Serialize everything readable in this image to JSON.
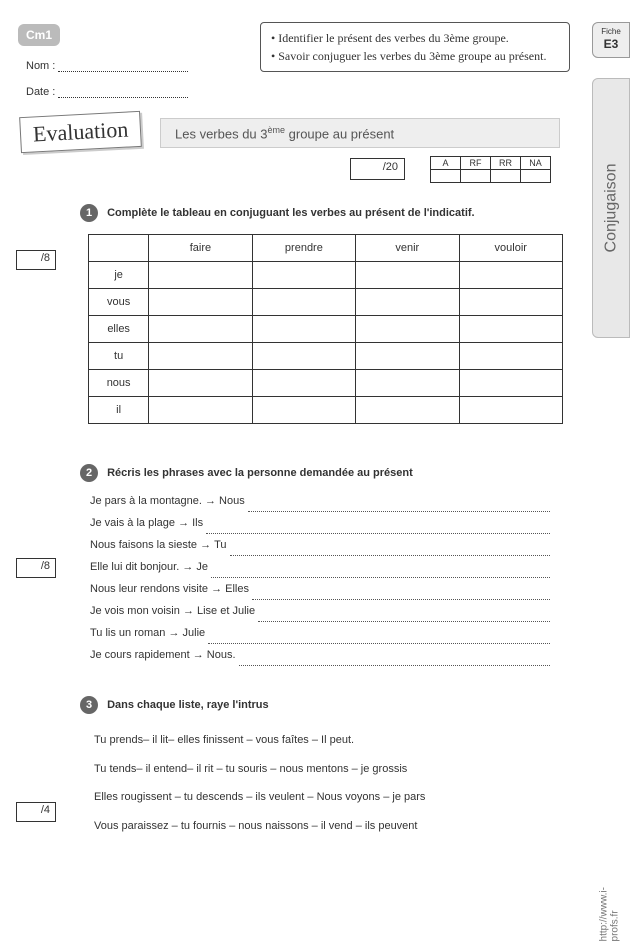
{
  "level": "Cm1",
  "sideTab": {
    "label": "Fiche",
    "code": "E3"
  },
  "sideBand": "Conjugaison",
  "url": "http://www.i-profs.fr",
  "fields": {
    "name": "Nom :",
    "date": "Date :"
  },
  "objectives": [
    "Identifier le présent des verbes du 3ème groupe.",
    "Savoir conjuguer les verbes du 3ème groupe au présent."
  ],
  "evalLabel": "Evaluation",
  "title": {
    "pre": "Les verbes du 3",
    "sup": "ème",
    "post": " groupe au présent"
  },
  "scoreTotal": "/20",
  "gradeHeaders": [
    "A",
    "RF",
    "RR",
    "NA"
  ],
  "q1": {
    "num": "1",
    "title": "Complète le tableau en conjuguant les verbes au présent de l'indicatif.",
    "pts": "/8",
    "verbs": [
      "faire",
      "prendre",
      "venir",
      "vouloir"
    ],
    "pronouns": [
      "je",
      "vous",
      "elles",
      "tu",
      "nous",
      "il"
    ]
  },
  "q2": {
    "num": "2",
    "title": "Récris les phrases avec la personne demandée au présent",
    "pts": "/8",
    "lines": [
      {
        "text": "Je pars à la montagne.",
        "to": "Nous"
      },
      {
        "text": "Je vais à la plage",
        "to": "Ils"
      },
      {
        "text": "Nous faisons la sieste",
        "to": "Tu"
      },
      {
        "text": "Elle lui dit bonjour.",
        "to": "Je"
      },
      {
        "text": "Nous leur rendons visite",
        "to": "Elles"
      },
      {
        "text": "Je vois mon voisin",
        "to": "Lise et Julie"
      },
      {
        "text": "Tu lis un roman",
        "to": "Julie"
      },
      {
        "text": "Je cours rapidement",
        "to": "Nous."
      }
    ]
  },
  "q3": {
    "num": "3",
    "title": "Dans chaque liste, raye l'intrus",
    "pts": "/4",
    "lines": [
      "Tu prends– il lit– elles finissent – vous faîtes – Il peut.",
      "Tu tends– il entend– il rit – tu souris – nous mentons – je grossis",
      "Elles rougissent – tu descends – ils veulent – Nous voyons – je pars",
      "Vous paraissez – tu fournis – nous naissons – il vend – ils peuvent"
    ]
  }
}
